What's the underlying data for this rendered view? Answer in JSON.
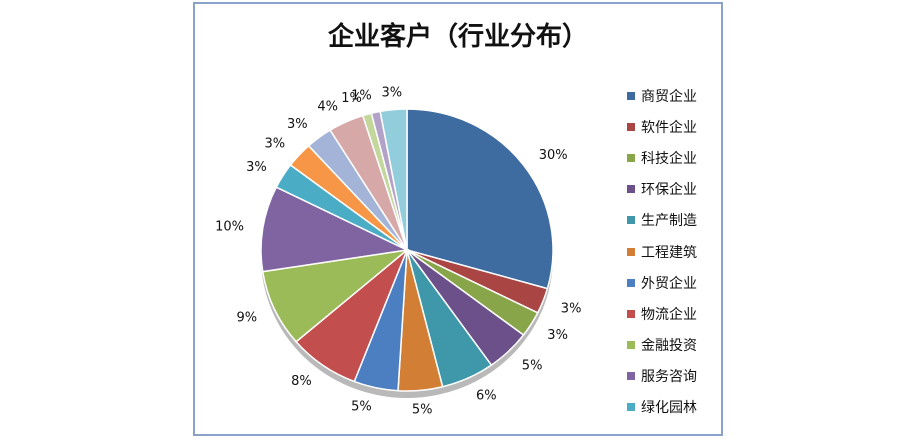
{
  "chart_data": {
    "type": "pie",
    "title": "企业客户（行业分布）",
    "categories": [
      "商贸企业",
      "软件企业",
      "科技企业",
      "环保企业",
      "生产制造",
      "工程建筑",
      "外贸企业",
      "物流企业",
      "金融投资",
      "服务咨询",
      "绿化园林",
      "",
      "",
      "",
      "",
      "",
      ""
    ],
    "values": [
      30,
      3,
      3,
      5,
      6,
      5,
      5,
      8,
      9,
      10,
      3,
      3,
      3,
      4,
      1,
      1,
      3
    ],
    "labels": [
      "30%",
      "3%",
      "3%",
      "5%",
      "6%",
      "5%",
      "5%",
      "8%",
      "9%",
      "10%",
      "3%",
      "3%",
      "3%",
      "4%",
      "1%",
      "1%",
      "3%"
    ],
    "colors": [
      "#3f6ca0",
      "#a94643",
      "#88a54a",
      "#6b5089",
      "#3f98aa",
      "#d27f35",
      "#4b7fc2",
      "#c24f4d",
      "#9bbb59",
      "#8064a2",
      "#4bacc6",
      "#f79646",
      "#a3b4d8",
      "#d7a8a8",
      "#c3d69b",
      "#b3a2c7",
      "#92cddc"
    ],
    "legend": "right"
  }
}
